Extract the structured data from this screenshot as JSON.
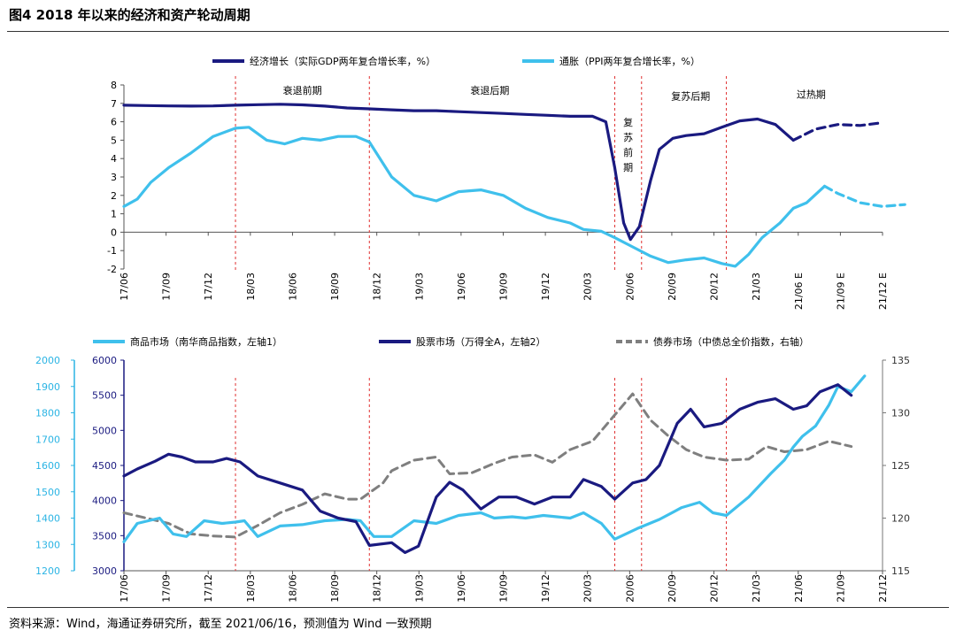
{
  "figure": {
    "title": "图4  2018 年以来的经济和资产轮动周期",
    "source": "资料来源：Wind，海通证券研究所，截至 2021/06/16，预测值为 Wind 一致预期"
  },
  "colors": {
    "dark": "#1a1a80",
    "light": "#3fc0ec",
    "gray": "#7f7f7f",
    "phase": "#e03030",
    "left_axis_light": "#2bb4e4"
  },
  "chart_data": [
    {
      "type": "line",
      "ylim": [
        -2,
        8
      ],
      "yticks": [
        "-2",
        "-1",
        "0",
        "1",
        "2",
        "3",
        "4",
        "5",
        "6",
        "7",
        "8"
      ],
      "xlim": [
        0,
        17
      ],
      "x_tick_labels": [
        "17/06",
        "17/09",
        "17/12",
        "18/03",
        "18/06",
        "18/09",
        "18/12",
        "19/03",
        "19/06",
        "19/09",
        "19/12",
        "20/03",
        "20/06",
        "20/09",
        "20/12",
        "21/03",
        "21/06 E",
        "21/09 E",
        "21/12 E"
      ],
      "legend": [
        "经济增长（实际GDP两年复合增长率，%）",
        "通胀（PPI两年复合增长率，%）"
      ],
      "phase_lines_x": [
        2.5,
        5.5,
        11.0,
        11.6,
        13.5
      ],
      "phases": [
        {
          "label": "衰退前期",
          "x": 4.0,
          "y": 7.7,
          "vertical": false
        },
        {
          "label": "衰退后期",
          "x": 8.2,
          "y": 7.7,
          "vertical": false
        },
        {
          "label": "复苏前期",
          "x": 11.3,
          "y": 5.8,
          "vertical": true
        },
        {
          "label": "复苏后期",
          "x": 12.7,
          "y": 7.4,
          "vertical": false
        },
        {
          "label": "过热期",
          "x": 15.4,
          "y": 7.5,
          "vertical": false
        }
      ],
      "series": [
        {
          "name": "经济增长（实际GDP两年复合增长率，%）",
          "color_key": "dark",
          "points": [
            [
              0,
              6.9
            ],
            [
              0.5,
              6.88
            ],
            [
              1,
              6.86
            ],
            [
              1.5,
              6.85
            ],
            [
              2,
              6.86
            ],
            [
              2.5,
              6.9
            ],
            [
              3,
              6.93
            ],
            [
              3.5,
              6.95
            ],
            [
              4,
              6.92
            ],
            [
              4.5,
              6.85
            ],
            [
              5,
              6.75
            ],
            [
              5.5,
              6.7
            ],
            [
              6,
              6.65
            ],
            [
              6.5,
              6.6
            ],
            [
              7,
              6.6
            ],
            [
              7.5,
              6.55
            ],
            [
              8,
              6.5
            ],
            [
              8.5,
              6.45
            ],
            [
              9,
              6.4
            ],
            [
              9.5,
              6.35
            ],
            [
              10,
              6.3
            ],
            [
              10.5,
              6.3
            ],
            [
              10.8,
              6.0
            ],
            [
              11.0,
              3.5
            ],
            [
              11.2,
              0.5
            ],
            [
              11.35,
              -0.4
            ],
            [
              11.55,
              0.3
            ],
            [
              11.8,
              2.8
            ],
            [
              12,
              4.5
            ],
            [
              12.3,
              5.1
            ],
            [
              12.6,
              5.25
            ],
            [
              13,
              5.35
            ],
            [
              13.4,
              5.7
            ],
            [
              13.8,
              6.05
            ],
            [
              14.2,
              6.15
            ],
            [
              14.6,
              5.85
            ],
            [
              15,
              5.0
            ]
          ]
        },
        {
          "name": "经济增长预测",
          "color_key": "dark",
          "dashed": true,
          "points": [
            [
              15,
              5.0
            ],
            [
              15.5,
              5.6
            ],
            [
              16,
              5.85
            ],
            [
              16.5,
              5.8
            ],
            [
              17,
              5.95
            ]
          ]
        },
        {
          "name": "通胀（PPI两年复合增长率，%）",
          "color_key": "light",
          "points": [
            [
              0,
              1.4
            ],
            [
              0.3,
              1.8
            ],
            [
              0.6,
              2.7
            ],
            [
              1,
              3.5
            ],
            [
              1.5,
              4.3
            ],
            [
              2,
              5.2
            ],
            [
              2.5,
              5.65
            ],
            [
              2.8,
              5.7
            ],
            [
              3.2,
              5.0
            ],
            [
              3.6,
              4.8
            ],
            [
              4,
              5.1
            ],
            [
              4.4,
              5.0
            ],
            [
              4.8,
              5.2
            ],
            [
              5.2,
              5.2
            ],
            [
              5.5,
              4.9
            ],
            [
              6,
              3.0
            ],
            [
              6.5,
              2.0
            ],
            [
              7,
              1.7
            ],
            [
              7.5,
              2.2
            ],
            [
              8,
              2.3
            ],
            [
              8.5,
              2.0
            ],
            [
              9,
              1.3
            ],
            [
              9.5,
              0.8
            ],
            [
              10,
              0.5
            ],
            [
              10.3,
              0.15
            ],
            [
              10.7,
              0.05
            ],
            [
              11,
              -0.3
            ],
            [
              11.4,
              -0.8
            ],
            [
              11.8,
              -1.3
            ],
            [
              12.2,
              -1.65
            ],
            [
              12.6,
              -1.5
            ],
            [
              13,
              -1.4
            ],
            [
              13.4,
              -1.7
            ],
            [
              13.7,
              -1.85
            ],
            [
              14,
              -1.2
            ],
            [
              14.3,
              -0.3
            ],
            [
              14.7,
              0.5
            ],
            [
              15,
              1.3
            ],
            [
              15.3,
              1.6
            ],
            [
              15.7,
              2.5
            ]
          ]
        },
        {
          "name": "通胀预测",
          "color_key": "light",
          "dashed": true,
          "points": [
            [
              15.7,
              2.5
            ],
            [
              16,
              2.1
            ],
            [
              16.5,
              1.6
            ],
            [
              17,
              1.4
            ],
            [
              17.5,
              1.5
            ]
          ]
        }
      ]
    },
    {
      "type": "line",
      "left_axis_light": {
        "ylim": [
          1200,
          2000
        ],
        "ticks": [
          "1200",
          "1300",
          "1400",
          "1500",
          "1600",
          "1700",
          "1800",
          "1900",
          "2000"
        ]
      },
      "left_axis_dark": {
        "ylim": [
          3000,
          6000
        ],
        "ticks": [
          "3000",
          "3500",
          "4000",
          "4500",
          "5000",
          "5500",
          "6000"
        ]
      },
      "right_axis": {
        "ylim": [
          115,
          135
        ],
        "ticks": [
          "115",
          "120",
          "125",
          "130",
          "135"
        ]
      },
      "xlim": [
        0,
        17
      ],
      "x_tick_labels": [
        "17/06",
        "17/09",
        "17/12",
        "18/03",
        "18/06",
        "18/09",
        "18/12",
        "19/03",
        "19/06",
        "19/09",
        "19/12",
        "20/03",
        "20/06",
        "20/09",
        "20/12",
        "21/03",
        "21/06",
        "21/09",
        "21/12"
      ],
      "legend": [
        "商品市场（南华商品指数，左轴1）",
        "股票市场（万得全A，左轴2）",
        "债券市场（中债总全价指数，右轴）"
      ],
      "phase_lines_x": [
        2.5,
        5.5,
        11.0,
        11.6,
        13.5
      ],
      "series": [
        {
          "name": "商品市场（南华商品指数，左轴1）",
          "axis": "left_axis_light",
          "color_key": "light",
          "points": [
            [
              0,
              1310
            ],
            [
              0.3,
              1380
            ],
            [
              0.8,
              1400
            ],
            [
              1.1,
              1340
            ],
            [
              1.4,
              1330
            ],
            [
              1.8,
              1390
            ],
            [
              2.2,
              1380
            ],
            [
              2.5,
              1385
            ],
            [
              2.7,
              1390
            ],
            [
              3,
              1330
            ],
            [
              3.5,
              1370
            ],
            [
              4,
              1375
            ],
            [
              4.5,
              1390
            ],
            [
              5,
              1395
            ],
            [
              5.3,
              1390
            ],
            [
              5.6,
              1330
            ],
            [
              6,
              1330
            ],
            [
              6.5,
              1390
            ],
            [
              7,
              1380
            ],
            [
              7.5,
              1410
            ],
            [
              8,
              1420
            ],
            [
              8.3,
              1400
            ],
            [
              8.7,
              1405
            ],
            [
              9,
              1400
            ],
            [
              9.4,
              1410
            ],
            [
              9.7,
              1405
            ],
            [
              10,
              1400
            ],
            [
              10.3,
              1420
            ],
            [
              10.7,
              1380
            ],
            [
              11,
              1320
            ],
            [
              11.5,
              1360
            ],
            [
              12,
              1395
            ],
            [
              12.5,
              1440
            ],
            [
              12.9,
              1460
            ],
            [
              13.2,
              1420
            ],
            [
              13.5,
              1410
            ],
            [
              14,
              1480
            ],
            [
              14.5,
              1570
            ],
            [
              14.8,
              1620
            ],
            [
              15,
              1670
            ],
            [
              15.2,
              1710
            ],
            [
              15.5,
              1750
            ],
            [
              15.8,
              1830
            ],
            [
              16,
              1900
            ],
            [
              16.3,
              1880
            ],
            [
              16.6,
              1940
            ]
          ]
        },
        {
          "name": "股票市场（万得全A，左轴2）",
          "axis": "left_axis_dark",
          "color_key": "dark",
          "points": [
            [
              0,
              4350
            ],
            [
              0.3,
              4450
            ],
            [
              0.7,
              4560
            ],
            [
              1,
              4660
            ],
            [
              1.3,
              4620
            ],
            [
              1.6,
              4550
            ],
            [
              2,
              4550
            ],
            [
              2.3,
              4600
            ],
            [
              2.6,
              4550
            ],
            [
              3,
              4350
            ],
            [
              3.5,
              4250
            ],
            [
              4,
              4150
            ],
            [
              4.4,
              3850
            ],
            [
              4.8,
              3750
            ],
            [
              5.2,
              3700
            ],
            [
              5.5,
              3360
            ],
            [
              6,
              3400
            ],
            [
              6.3,
              3260
            ],
            [
              6.6,
              3350
            ],
            [
              7,
              4050
            ],
            [
              7.3,
              4260
            ],
            [
              7.6,
              4150
            ],
            [
              8,
              3880
            ],
            [
              8.4,
              4050
            ],
            [
              8.8,
              4050
            ],
            [
              9.2,
              3950
            ],
            [
              9.6,
              4050
            ],
            [
              10,
              4050
            ],
            [
              10.3,
              4300
            ],
            [
              10.7,
              4200
            ],
            [
              11,
              4020
            ],
            [
              11.4,
              4250
            ],
            [
              11.7,
              4300
            ],
            [
              12,
              4500
            ],
            [
              12.4,
              5100
            ],
            [
              12.7,
              5300
            ],
            [
              13,
              5050
            ],
            [
              13.4,
              5100
            ],
            [
              13.8,
              5300
            ],
            [
              14.2,
              5400
            ],
            [
              14.6,
              5450
            ],
            [
              15,
              5300
            ],
            [
              15.3,
              5350
            ],
            [
              15.6,
              5550
            ],
            [
              16,
              5650
            ],
            [
              16.3,
              5500
            ]
          ]
        },
        {
          "name": "债券市场（中债总全价指数，右轴）",
          "axis": "right_axis",
          "color_key": "gray",
          "dashed": true,
          "points": [
            [
              0,
              120.5
            ],
            [
              0.5,
              120
            ],
            [
              1,
              119.5
            ],
            [
              1.5,
              118.5
            ],
            [
              2,
              118.3
            ],
            [
              2.5,
              118.2
            ],
            [
              3,
              119.3
            ],
            [
              3.5,
              120.5
            ],
            [
              4,
              121.3
            ],
            [
              4.5,
              122.3
            ],
            [
              5,
              121.8
            ],
            [
              5.3,
              121.8
            ],
            [
              5.8,
              123.3
            ],
            [
              6,
              124.5
            ],
            [
              6.5,
              125.5
            ],
            [
              7,
              125.8
            ],
            [
              7.3,
              124.2
            ],
            [
              7.8,
              124.3
            ],
            [
              8.3,
              125.2
            ],
            [
              8.7,
              125.8
            ],
            [
              9.2,
              126
            ],
            [
              9.6,
              125.3
            ],
            [
              10,
              126.5
            ],
            [
              10.5,
              127.3
            ],
            [
              11,
              129.8
            ],
            [
              11.4,
              131.8
            ],
            [
              11.8,
              129.3
            ],
            [
              12.2,
              127.8
            ],
            [
              12.6,
              126.5
            ],
            [
              13,
              125.8
            ],
            [
              13.5,
              125.5
            ],
            [
              14,
              125.6
            ],
            [
              14.4,
              126.8
            ],
            [
              14.8,
              126.3
            ],
            [
              15.3,
              126.5
            ],
            [
              15.8,
              127.3
            ],
            [
              16.3,
              126.8
            ]
          ]
        }
      ]
    }
  ]
}
